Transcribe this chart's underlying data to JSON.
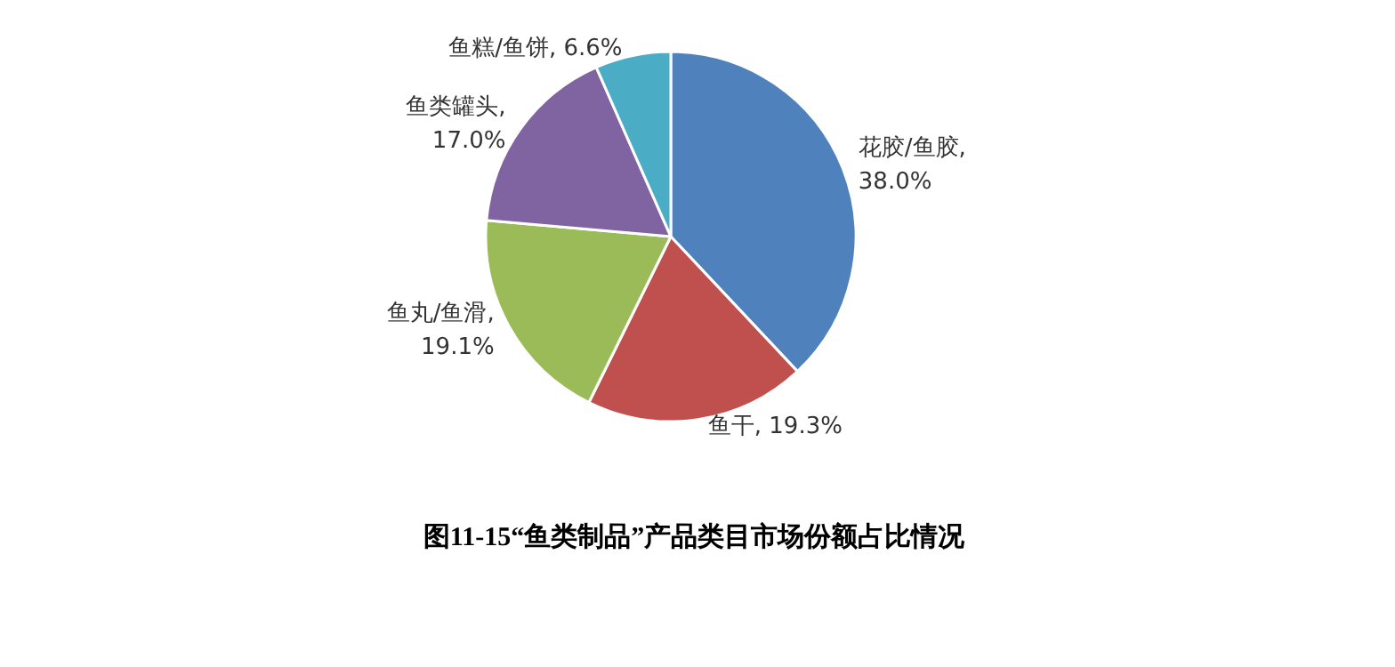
{
  "chart_data": {
    "type": "pie",
    "title": "图11-15“鱼类制品”产品类目市场份额占比情况",
    "categories": [
      "花胶/鱼胶",
      "鱼干",
      "鱼丸/鱼滑",
      "鱼类罐头",
      "鱼糕/鱼饼"
    ],
    "values": [
      38.0,
      19.3,
      19.1,
      17.0,
      6.6
    ],
    "colors": [
      "#4f81bd",
      "#c0504d",
      "#9bbb59",
      "#8064a2",
      "#4bacc6"
    ],
    "value_labels": [
      ", 38.0%",
      ", 19.3%",
      ", 19.1%",
      ", 17.0%",
      ", 6.6%"
    ],
    "legend": false
  }
}
